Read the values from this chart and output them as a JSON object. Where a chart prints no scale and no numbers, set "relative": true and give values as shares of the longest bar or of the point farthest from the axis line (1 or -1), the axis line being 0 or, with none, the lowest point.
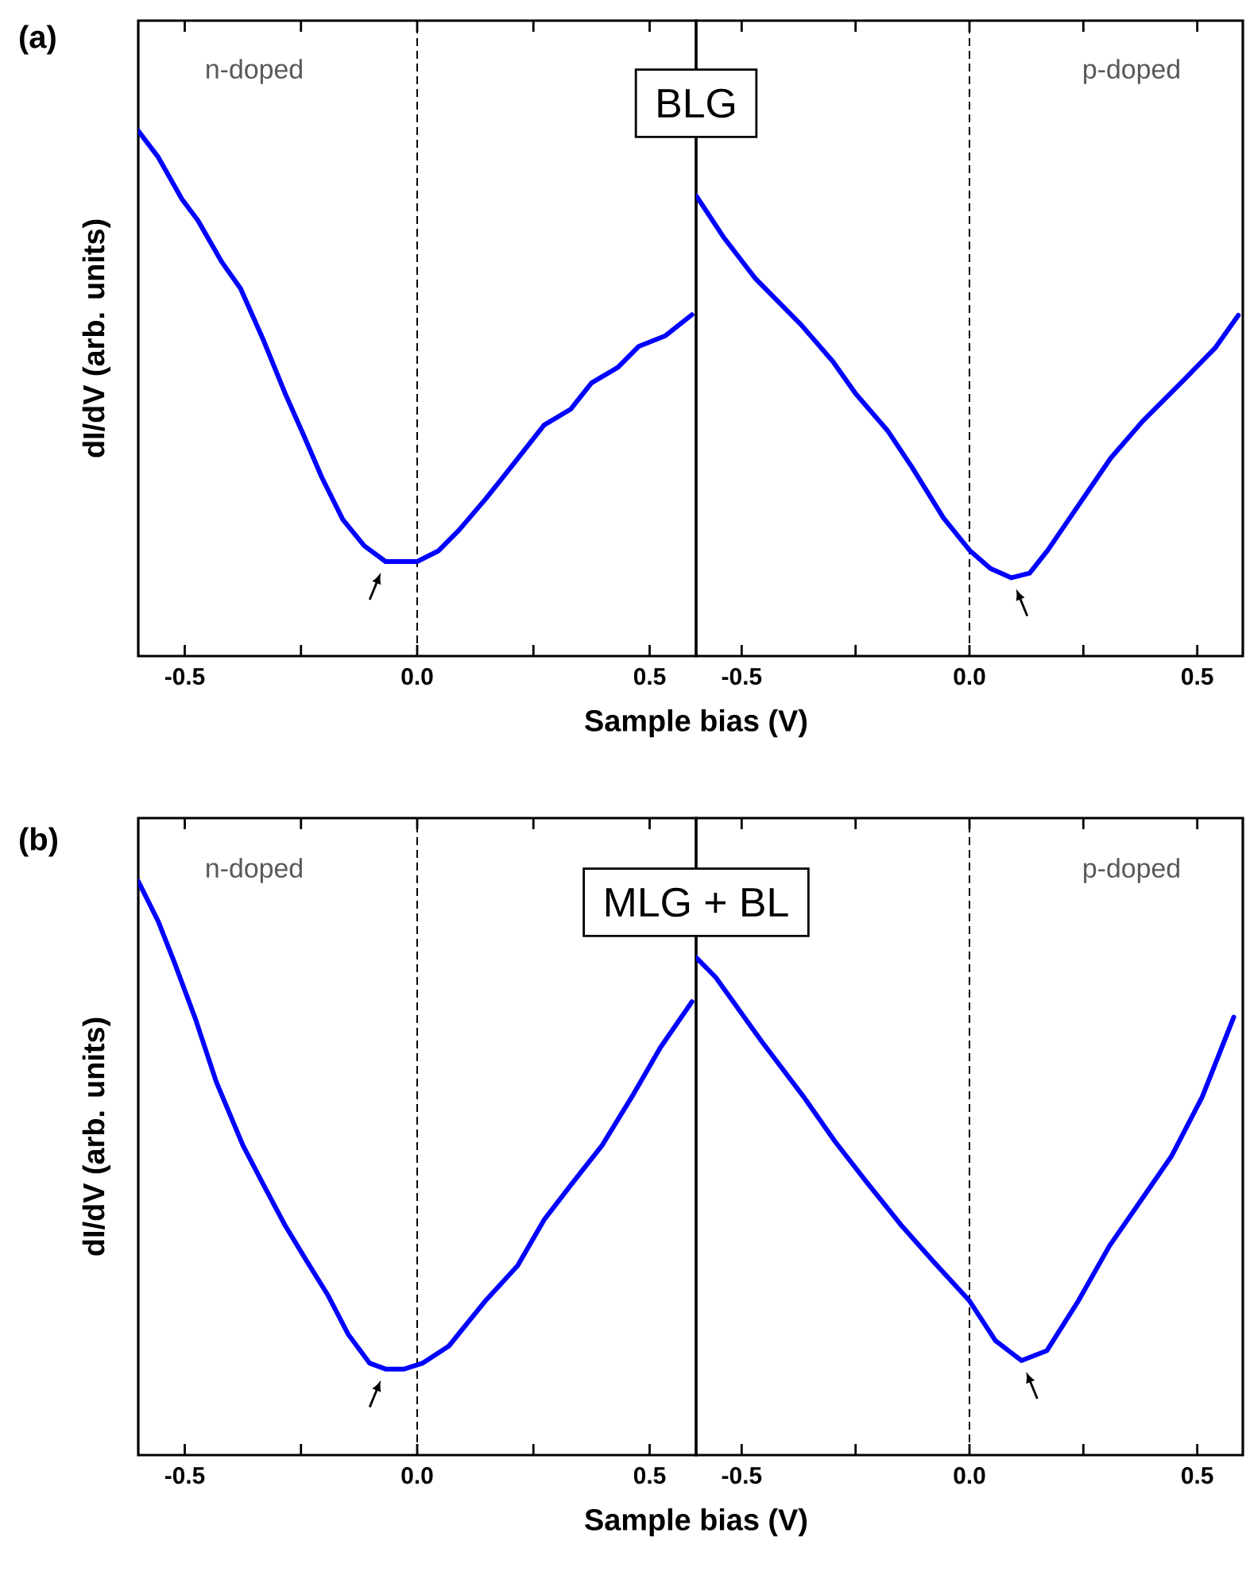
{
  "chart_data": [
    {
      "type": "line",
      "relative": true,
      "xlabel": "Sample bias (V)",
      "ylabel": "dI/dV (arb. units)",
      "tick_labels": "x",
      "annotations": [
        "(a)",
        "n-doped",
        "BLG"
      ],
      "xlim": [
        -0.6,
        0.6
      ],
      "xticks": [
        {
          "value": -0.5,
          "label": "-0.5"
        },
        {
          "value": -0.25,
          "label": null
        },
        {
          "value": 0,
          "label": "0.0"
        },
        {
          "value": 0.25,
          "label": null
        },
        {
          "value": 0.5,
          "label": "0.5"
        }
      ],
      "ref_lines": [
        {
          "axis": "x",
          "value": 0,
          "line_style": "dashed",
          "color": "#000000"
        }
      ],
      "x": [
        -0.6,
        -0.557,
        -0.506,
        -0.472,
        -0.42,
        -0.38,
        -0.33,
        -0.284,
        -0.244,
        -0.205,
        -0.16,
        -0.114,
        -0.068,
        -0.034,
        0.0,
        0.045,
        0.09,
        0.148,
        0.193,
        0.273,
        0.33,
        0.375,
        0.432,
        0.477,
        0.534,
        0.591
      ],
      "series": [
        {
          "color": "#0000ff",
          "values": [
            1.0,
            0.95,
            0.87,
            0.83,
            0.75,
            0.7,
            0.6,
            0.5,
            0.42,
            0.34,
            0.26,
            0.21,
            0.18,
            0.18,
            0.18,
            0.2,
            0.24,
            0.3,
            0.35,
            0.44,
            0.47,
            0.52,
            0.55,
            0.59,
            0.61,
            0.65
          ]
        }
      ]
    },
    {
      "type": "line",
      "relative": true,
      "tick_labels": "x",
      "annotations": [
        "p-doped"
      ],
      "xlim": [
        -0.6,
        0.6
      ],
      "xticks": [
        {
          "value": -0.5,
          "label": "-0.5"
        },
        {
          "value": -0.25,
          "label": null
        },
        {
          "value": 0,
          "label": "0.0"
        },
        {
          "value": 0.25,
          "label": null
        },
        {
          "value": 0.5,
          "label": "0.5"
        }
      ],
      "ref_lines": [
        {
          "axis": "x",
          "value": 0,
          "line_style": "dashed",
          "color": "#000000"
        }
      ],
      "x": [
        -0.6,
        -0.54,
        -0.47,
        -0.37,
        -0.3,
        -0.25,
        -0.18,
        -0.126,
        -0.057,
        0.0,
        0.046,
        0.092,
        0.132,
        0.172,
        0.241,
        0.31,
        0.38,
        0.471,
        0.54,
        0.59
      ],
      "series": [
        {
          "color": "#0000ff",
          "values": [
            1.0,
            0.91,
            0.82,
            0.72,
            0.64,
            0.57,
            0.49,
            0.41,
            0.3,
            0.23,
            0.19,
            0.17,
            0.18,
            0.23,
            0.33,
            0.43,
            0.51,
            0.6,
            0.67,
            0.74
          ]
        }
      ]
    },
    {
      "type": "line",
      "relative": true,
      "xlabel": "Sample bias (V)",
      "ylabel": "dI/dV (arb. units)",
      "tick_labels": "x",
      "annotations": [
        "(b)",
        "n-doped",
        "MLG + BL"
      ],
      "xlim": [
        -0.6,
        0.6
      ],
      "xticks": [
        {
          "value": -0.5,
          "label": "-0.5"
        },
        {
          "value": -0.25,
          "label": null
        },
        {
          "value": 0,
          "label": "0.0"
        },
        {
          "value": 0.25,
          "label": null
        },
        {
          "value": 0.5,
          "label": "0.5"
        }
      ],
      "ref_lines": [
        {
          "axis": "x",
          "value": 0,
          "line_style": "dashed",
          "color": "#000000"
        }
      ],
      "x": [
        -0.6,
        -0.557,
        -0.523,
        -0.477,
        -0.432,
        -0.375,
        -0.33,
        -0.284,
        -0.239,
        -0.193,
        -0.148,
        -0.102,
        -0.068,
        -0.028,
        0.011,
        0.068,
        0.148,
        0.216,
        0.273,
        0.33,
        0.398,
        0.466,
        0.523,
        0.591
      ],
      "series": [
        {
          "color": "#0000ff",
          "values": [
            1.0,
            0.93,
            0.86,
            0.76,
            0.65,
            0.54,
            0.47,
            0.4,
            0.34,
            0.28,
            0.21,
            0.16,
            0.15,
            0.15,
            0.16,
            0.19,
            0.27,
            0.33,
            0.41,
            0.47,
            0.54,
            0.63,
            0.71,
            0.79
          ]
        }
      ]
    },
    {
      "type": "line",
      "relative": true,
      "tick_labels": "x",
      "annotations": [
        "p-doped"
      ],
      "xlim": [
        -0.6,
        0.6
      ],
      "xticks": [
        {
          "value": -0.5,
          "label": "-0.5"
        },
        {
          "value": -0.25,
          "label": null
        },
        {
          "value": 0,
          "label": "0.0"
        },
        {
          "value": 0.25,
          "label": null
        },
        {
          "value": 0.5,
          "label": "0.5"
        }
      ],
      "ref_lines": [
        {
          "axis": "x",
          "value": 0,
          "line_style": "dashed",
          "color": "#000000"
        }
      ],
      "x": [
        -0.6,
        -0.557,
        -0.51,
        -0.455,
        -0.364,
        -0.295,
        -0.227,
        -0.148,
        -0.08,
        0.0,
        0.057,
        0.114,
        0.17,
        0.239,
        0.307,
        0.375,
        0.443,
        0.511,
        0.58
      ],
      "series": [
        {
          "color": "#0000ff",
          "values": [
            1.0,
            0.96,
            0.9,
            0.83,
            0.72,
            0.63,
            0.55,
            0.46,
            0.39,
            0.31,
            0.23,
            0.19,
            0.21,
            0.31,
            0.42,
            0.51,
            0.6,
            0.72,
            0.88
          ]
        }
      ]
    }
  ]
}
